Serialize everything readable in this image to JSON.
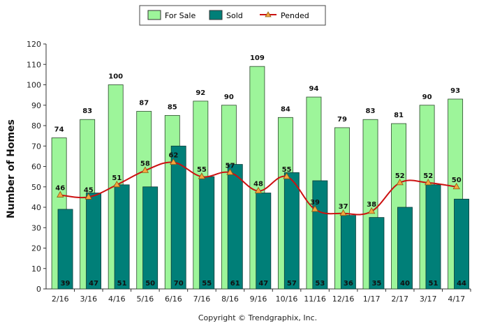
{
  "chart_data": {
    "type": "bar",
    "categories": [
      "2/16",
      "3/16",
      "4/16",
      "5/16",
      "6/16",
      "7/16",
      "8/16",
      "9/16",
      "10/16",
      "11/16",
      "12/16",
      "1/17",
      "2/17",
      "3/17",
      "4/17"
    ],
    "series": [
      {
        "name": "For Sale",
        "kind": "bar",
        "color": "#9df59a",
        "values": [
          74,
          83,
          100,
          87,
          85,
          92,
          90,
          109,
          84,
          94,
          79,
          83,
          81,
          90,
          93
        ]
      },
      {
        "name": "Sold",
        "kind": "bar",
        "color": "#007f78",
        "values": [
          39,
          47,
          51,
          50,
          70,
          55,
          61,
          47,
          57,
          53,
          36,
          35,
          40,
          51,
          44
        ]
      },
      {
        "name": "Pended",
        "kind": "line",
        "color": "#cc1111",
        "marker_color": "#f4a640",
        "values": [
          46,
          45,
          51,
          58,
          62,
          55,
          57,
          48,
          55,
          39,
          37,
          38,
          52,
          52,
          50
        ]
      }
    ],
    "title": "",
    "xlabel": "",
    "ylabel": "Number of Homes",
    "ylim": [
      0,
      120
    ],
    "yticks": [
      0,
      10,
      20,
      30,
      40,
      50,
      60,
      70,
      80,
      90,
      100,
      110,
      120
    ],
    "grid": false,
    "legend": "top-center",
    "copyright": "Copyright © Trendgraphix, Inc."
  }
}
